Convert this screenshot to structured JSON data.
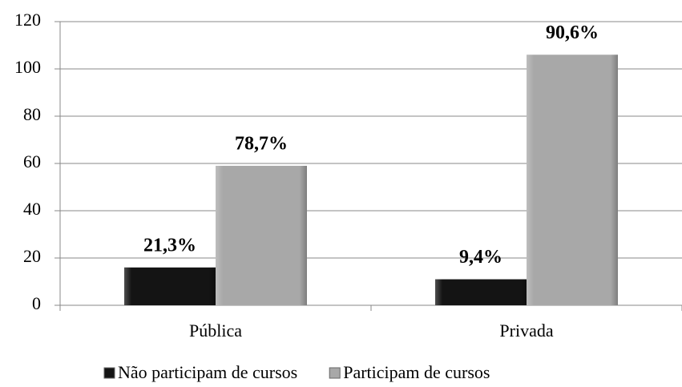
{
  "chart_data": {
    "type": "bar",
    "categories": [
      "Pública",
      "Privada"
    ],
    "series": [
      {
        "name": "Não participam de cursos",
        "color": "#141414",
        "values": [
          16,
          11
        ],
        "value_labels": [
          "21,3%",
          "9,4%"
        ]
      },
      {
        "name": "Participam de cursos",
        "color": "#a8a8a8",
        "values": [
          59,
          106
        ],
        "value_labels": [
          "78,7%",
          "90,6%"
        ]
      }
    ],
    "ylim": [
      0,
      120
    ],
    "yticks": [
      0,
      20,
      40,
      60,
      80,
      100,
      120
    ],
    "grid": true,
    "legend": "bottom"
  }
}
